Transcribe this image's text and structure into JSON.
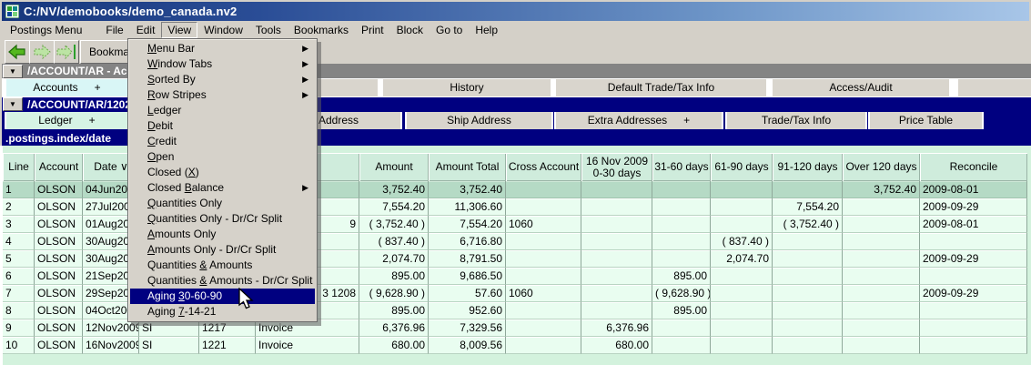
{
  "window": {
    "title": "C:/NV/demobooks/demo_canada.nv2"
  },
  "menu_bar": {
    "items": [
      "Postings Menu",
      "File",
      "Edit",
      "View",
      "Window",
      "Tools",
      "Bookmarks",
      "Print",
      "Block",
      "Go to",
      "Help"
    ],
    "open_item": "View"
  },
  "toolbar": {
    "back_icon": "back-arrow",
    "forward_icon": "forward-arrow",
    "forward_end_icon": "forward-to-end-arrow",
    "bookmarks_label": "Bookmarks"
  },
  "accounts_pane": {
    "path": "/ACCOUNT/AR - Accounts",
    "tabs": [
      {
        "label": "Accounts",
        "plus": "+",
        "active": true
      },
      {
        "label": ""
      },
      {
        "label": "History"
      },
      {
        "label": "Default Trade/Tax Info"
      },
      {
        "label": "Access/Audit"
      },
      {
        "label": ""
      }
    ]
  },
  "ledger_pane": {
    "path": "/ACCOUNT/AR/1202/OLSON",
    "tabs": [
      {
        "label": "Ledger",
        "plus": "+",
        "active": true
      },
      {
        "label": "Address"
      },
      {
        "label": "Ship Address"
      },
      {
        "label": "Extra Addresses",
        "plus": "+"
      },
      {
        "label": "Trade/Tax Info"
      },
      {
        "label": "Price Table"
      }
    ]
  },
  "index_bar": ".postings.index/date",
  "view_menu": {
    "items": [
      {
        "label": "Menu Bar",
        "html": "<u>M</u>enu Bar",
        "submenu": true
      },
      {
        "label": "Window Tabs",
        "html": "<u>W</u>indow Tabs",
        "submenu": true
      },
      {
        "label": "Sorted By",
        "html": "<u>S</u>orted By",
        "submenu": true
      },
      {
        "label": "Row Stripes",
        "html": "<u>R</u>ow Stripes",
        "submenu": true
      },
      {
        "label": "Ledger",
        "html": "<u>L</u>edger"
      },
      {
        "label": "Debit",
        "html": "<u>D</u>ebit"
      },
      {
        "label": "Credit",
        "html": "<u>C</u>redit"
      },
      {
        "label": "Open",
        "html": "<u>O</u>pen"
      },
      {
        "label": "Closed (X)",
        "html": "Closed (<u>X</u>)"
      },
      {
        "label": "Closed Balance",
        "html": "Closed <u>B</u>alance",
        "submenu": true
      },
      {
        "label": "Quantities Only",
        "html": "<u>Q</u>uantities Only"
      },
      {
        "label": "Quantities Only - Dr/Cr Split",
        "html": "<u>Q</u>uantities Only - Dr/Cr Split"
      },
      {
        "label": "Amounts Only",
        "html": "<u>A</u>mounts Only"
      },
      {
        "label": "Amounts Only - Dr/Cr Split",
        "html": "<u>A</u>mounts Only - Dr/Cr Split"
      },
      {
        "label": "Quantities & Amounts",
        "html": "Quantities <u>&amp;</u> Amounts"
      },
      {
        "label": "Quantities & Amounts - Dr/Cr Split",
        "html": "Quantities <u>&amp;</u> Amounts - Dr/Cr Split"
      },
      {
        "label": "Aging 30-60-90",
        "html": "Aging <u>3</u>0-60-90",
        "highlighted": true
      },
      {
        "label": "Aging 7-14-21",
        "html": "Aging <u>7</u>-14-21"
      }
    ]
  },
  "table": {
    "columns": [
      {
        "label": "Line"
      },
      {
        "label": "Account"
      },
      {
        "label": "Date  ∨"
      },
      {
        "label": ""
      },
      {
        "label": ""
      },
      {
        "label": ""
      },
      {
        "label": "Amount",
        "numeric": true
      },
      {
        "label": "Amount Total",
        "numeric": true
      },
      {
        "label": "Cross Account"
      },
      {
        "label": "16 Nov 2009\n0-30 days",
        "numeric": true
      },
      {
        "label": "31-60 days",
        "numeric": true
      },
      {
        "label": "61-90 days",
        "numeric": true
      },
      {
        "label": "91-120 days",
        "numeric": true
      },
      {
        "label": "Over 120 days",
        "numeric": true
      },
      {
        "label": "Reconcile"
      }
    ],
    "rows": [
      {
        "selected": true,
        "cells": [
          "1",
          "OLSON",
          "04Jun2009",
          "",
          "",
          "",
          "3,752.40",
          "3,752.40",
          "",
          "",
          "",
          "",
          "",
          "3,752.40",
          "2009-08-01"
        ]
      },
      {
        "cells": [
          "2",
          "OLSON",
          "27Jul2009",
          "",
          "",
          "",
          "7,554.20",
          "11,306.60",
          "",
          "",
          "",
          "",
          "7,554.20",
          "",
          "2009-09-29"
        ]
      },
      {
        "desc_tail": true,
        "cells": [
          "3",
          "OLSON",
          "01Aug2009",
          "",
          "",
          "9",
          "( 3,752.40 )",
          "7,554.20",
          "1060",
          "",
          "",
          "",
          "( 3,752.40 )",
          "",
          "2009-08-01"
        ]
      },
      {
        "cells": [
          "4",
          "OLSON",
          "30Aug2009",
          "",
          "",
          "",
          "( 837.40 )",
          "6,716.80",
          "",
          "",
          "",
          "( 837.40 )",
          "",
          "",
          ""
        ]
      },
      {
        "cells": [
          "5",
          "OLSON",
          "30Aug2009",
          "",
          "",
          "",
          "2,074.70",
          "8,791.50",
          "",
          "",
          "",
          "2,074.70",
          "",
          "",
          "2009-09-29"
        ]
      },
      {
        "cells": [
          "6",
          "OLSON",
          "21Sep2009",
          "",
          "",
          "",
          "895.00",
          "9,686.50",
          "",
          "",
          "895.00",
          "",
          "",
          "",
          ""
        ]
      },
      {
        "desc_tail": true,
        "cells": [
          "7",
          "OLSON",
          "29Sep2009",
          "",
          "",
          "3 1208",
          "( 9,628.90 )",
          "57.60",
          "1060",
          "",
          "( 9,628.90 )",
          "",
          "",
          "",
          "2009-09-29"
        ]
      },
      {
        "cells": [
          "8",
          "OLSON",
          "04Oct2009",
          "",
          "",
          "",
          "895.00",
          "952.60",
          "",
          "",
          "895.00",
          "",
          "",
          "",
          ""
        ]
      },
      {
        "cells": [
          "9",
          "OLSON",
          "12Nov2009",
          "SI",
          "1217",
          "Invoice",
          "6,376.96",
          "7,329.56",
          "",
          "6,376.96",
          "",
          "",
          "",
          "",
          ""
        ]
      },
      {
        "cells": [
          "10",
          "OLSON",
          "16Nov2009",
          "SI",
          "1221",
          "Invoice",
          "680.00",
          "8,009.56",
          "",
          "680.00",
          "",
          "",
          "",
          "",
          ""
        ]
      }
    ]
  },
  "colors": {
    "navy": "#000080",
    "title_gradient_start": "#16367c",
    "title_gradient_end": "#a8c6e8",
    "chrome": "#d4d0c8",
    "path_gray": "#848484",
    "table_bg": "#d3f2dd",
    "row_bg": "#e9fdf0",
    "row_selected": "#b5dac5",
    "header_cell": "#cfecdc",
    "active_tab_accounts": "#d9f6f6",
    "active_tab_ledger": "#d6f3e4",
    "toolbar_arrow_green": "#4aa818"
  }
}
